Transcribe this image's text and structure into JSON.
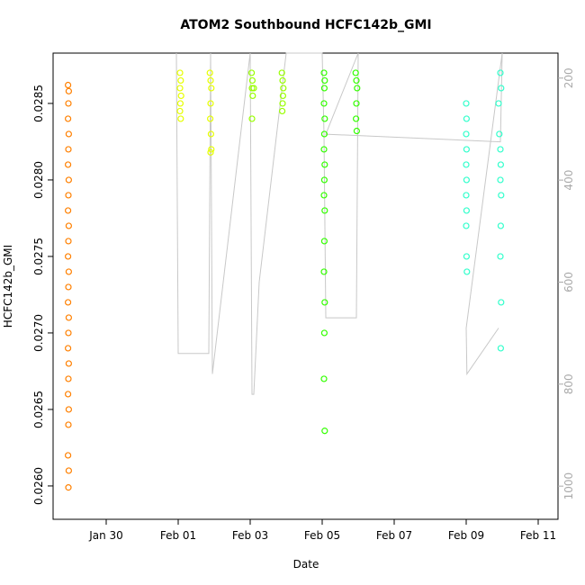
{
  "chart_data": {
    "type": "scatter",
    "title": "ATOM2 Southbound HCFC142b_GMI",
    "x_label": "Date",
    "y_label": "HCFC142b_GMI",
    "xlim": [
      28.525,
      42.55
    ],
    "xticks": [
      {
        "value": 30,
        "label": "Jan 30"
      },
      {
        "value": 32,
        "label": "Feb 01"
      },
      {
        "value": 34,
        "label": "Feb 03"
      },
      {
        "value": 36,
        "label": "Feb 05"
      },
      {
        "value": 38,
        "label": "Feb 07"
      },
      {
        "value": 40,
        "label": "Feb 09"
      },
      {
        "value": 42,
        "label": "Feb 11"
      }
    ],
    "ylim": [
      0.025782,
      0.028829
    ],
    "yticks": [
      {
        "value": 0.026,
        "label": "0.0260"
      },
      0.0265,
      {
        "value": 0.027,
        "label": "0.0270"
      },
      0.0275,
      {
        "value": 0.028,
        "label": "0.0280"
      },
      0.0285
    ],
    "y2lim": [
      1065,
      151
    ],
    "y2ticks": [
      200,
      400,
      600,
      800,
      1000
    ],
    "series": [
      {
        "color": "#ff8000",
        "x": [
          28.94,
          28.96,
          28.95,
          28.94,
          28.96,
          28.95,
          28.94,
          28.96,
          28.95,
          28.94,
          28.96,
          28.95,
          28.94,
          28.96,
          28.95,
          28.94,
          28.96,
          28.95,
          28.94,
          28.96,
          28.95,
          28.94,
          28.96,
          28.95,
          28.94,
          28.96,
          28.95
        ],
        "values": [
          0.02862,
          0.02858,
          0.0285,
          0.0284,
          0.0283,
          0.0282,
          0.0281,
          0.028,
          0.0279,
          0.0278,
          0.0277,
          0.0276,
          0.0275,
          0.0274,
          0.0273,
          0.0272,
          0.0271,
          0.027,
          0.0269,
          0.0268,
          0.0267,
          0.0266,
          0.0265,
          0.0264,
          0.0262,
          0.0261,
          0.02599
        ]
      },
      {
        "color": "#e6ff00",
        "x": [
          32.05,
          32.07,
          32.05,
          32.08,
          32.06,
          32.05,
          32.07,
          32.88,
          32.9,
          32.92,
          32.9,
          32.89,
          32.91,
          32.92,
          32.9
        ],
        "values": [
          0.0287,
          0.02865,
          0.0286,
          0.02855,
          0.0285,
          0.02845,
          0.0284,
          0.0287,
          0.02865,
          0.0286,
          0.0285,
          0.0284,
          0.0283,
          0.0282,
          0.02818
        ]
      },
      {
        "color": "#99ff00",
        "x": [
          34.04,
          34.06,
          34.05,
          34.07,
          34.1,
          34.05,
          34.88,
          34.9,
          34.92,
          34.91,
          34.9,
          34.89
        ],
        "values": [
          0.0287,
          0.02865,
          0.0286,
          0.02855,
          0.0286,
          0.0284,
          0.0287,
          0.02865,
          0.0286,
          0.02855,
          0.0285,
          0.02845
        ]
      },
      {
        "color": "#33ff00",
        "x": [
          36.05,
          36.07,
          36.06,
          36.05,
          36.07,
          36.06,
          36.05,
          36.07,
          36.06,
          36.05,
          36.07,
          36.06,
          36.05,
          36.07,
          36.06,
          36.05,
          36.07,
          36.93,
          36.95,
          36.97,
          36.95,
          36.94,
          36.96
        ],
        "values": [
          0.0287,
          0.02865,
          0.0286,
          0.0285,
          0.0284,
          0.0283,
          0.0282,
          0.0281,
          0.028,
          0.0279,
          0.0278,
          0.0276,
          0.0274,
          0.0272,
          0.027,
          0.0267,
          0.02636,
          0.0287,
          0.02865,
          0.0286,
          0.0285,
          0.0284,
          0.02832
        ]
      },
      {
        "color": "#33ffcc",
        "x": [
          40.0,
          40.01,
          40.0,
          40.01,
          40.0,
          40.01,
          40.0,
          40.01,
          40.0,
          40.01,
          40.02,
          40.9,
          40.95,
          40.92,
          40.97,
          40.95,
          40.96,
          40.95,
          40.97,
          40.96,
          40.95,
          40.97,
          40.96
        ],
        "values": [
          0.0285,
          0.0284,
          0.0283,
          0.0282,
          0.0281,
          0.028,
          0.0279,
          0.0278,
          0.0277,
          0.0275,
          0.0274,
          0.0285,
          0.0287,
          0.0283,
          0.0286,
          0.0282,
          0.0281,
          0.028,
          0.0279,
          0.0277,
          0.0275,
          0.0272,
          0.0269
        ]
      },
      {
        "axis": "y2",
        "line": true,
        "color": "#c8c8c8",
        "x": [
          31.95,
          32.0,
          32.05,
          32.85,
          32.9,
          32.95,
          34.0,
          34.05,
          34.1,
          34.25,
          35.0,
          35.9,
          36.0,
          36.05,
          36.1,
          36.95,
          37.0,
          36.1,
          40.95,
          41.0,
          40.0,
          40.02,
          40.9
        ],
        "values": [
          151,
          740,
          740,
          740,
          151,
          780,
          151,
          820,
          820,
          600,
          151,
          151,
          151,
          310,
          670,
          670,
          151,
          310,
          325,
          151,
          690,
          780,
          690
        ]
      }
    ]
  }
}
